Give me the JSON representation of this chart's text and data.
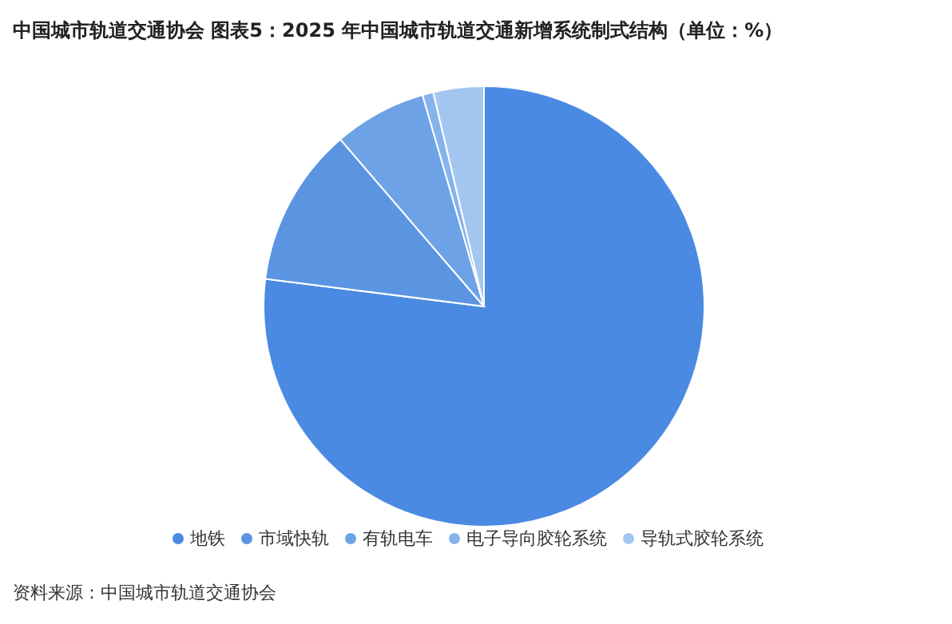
{
  "chart_data": {
    "type": "pie",
    "title": "中国城市轨道交通协会  图表5：2025 年中国城市轨道交通新增系统制式结构（单位：%）",
    "categories": [
      "地铁",
      "市域快轨",
      "有轨电车",
      "电子导向胶轮系统",
      "导轨式胶轮系统"
    ],
    "values": [
      77,
      11.7,
      6.8,
      0.8,
      3.7
    ],
    "colors": [
      "#4a8ae3",
      "#5b95e2",
      "#6da2e6",
      "#86b3ec",
      "#a3c6f1"
    ],
    "legend": "bottom",
    "annotations": [
      "资料来源：中国城市轨道交通协会"
    ]
  }
}
